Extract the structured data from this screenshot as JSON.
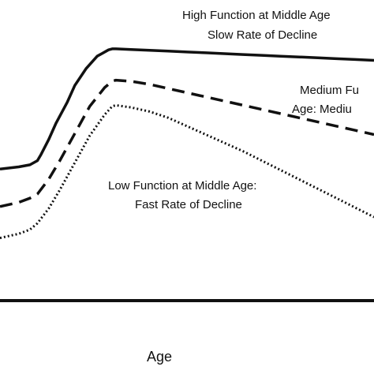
{
  "chart_data": {
    "type": "line",
    "title": "",
    "xlabel": "Age",
    "ylabel": "",
    "grid": false,
    "legend": "none",
    "series": [
      {
        "x": [
          0,
          0.5,
          0.8,
          1.0,
          1.1,
          1.3,
          1.5,
          1.8,
          2.0,
          2.3,
          2.6,
          2.9,
          3.0,
          3.1,
          3.5,
          4.0,
          4.5,
          5.0,
          5.5,
          6.0,
          6.5,
          7.0,
          7.5,
          8.0,
          8.5,
          9.0,
          9.5,
          10.0
        ],
        "values": [
          38,
          39,
          40,
          42,
          45,
          52,
          60,
          70,
          78,
          86,
          92,
          95,
          95.5,
          95.5,
          95.2,
          94.8,
          94.4,
          94.0,
          93.6,
          93.2,
          92.8,
          92.4,
          92.0,
          91.6,
          91.2,
          90.8,
          90.4,
          90.0
        ],
        "style": "solid"
      },
      {
        "x": [
          0,
          0.5,
          0.8,
          1.0,
          1.3,
          1.6,
          2.0,
          2.4,
          2.8,
          3.0,
          3.1,
          3.5,
          4.0,
          4.5,
          5.0,
          5.5,
          6.0,
          6.5,
          7.0,
          7.5,
          8.0,
          8.5,
          9.0,
          9.5,
          10.0
        ],
        "values": [
          20,
          22,
          24,
          26,
          33,
          42,
          55,
          68,
          77,
          80,
          80.5,
          80,
          78.5,
          76.5,
          74.5,
          72.5,
          70.5,
          68.5,
          66.5,
          64.5,
          62.5,
          60.5,
          58.5,
          56.5,
          54.5
        ],
        "style": "dashed"
      },
      {
        "x": [
          0,
          0.5,
          0.8,
          1.0,
          1.3,
          1.6,
          2.0,
          2.4,
          2.8,
          3.0,
          3.1,
          3.5,
          4.0,
          4.5,
          5.0,
          5.5,
          6.0,
          6.5,
          7.0,
          7.5,
          8.0,
          8.5,
          9.0,
          9.5,
          10.0
        ],
        "values": [
          5,
          7,
          9,
          12,
          19,
          28,
          41,
          54,
          64,
          68,
          68.5,
          67.5,
          65.5,
          62.5,
          58.5,
          54.5,
          50.5,
          46.5,
          42.0,
          37.5,
          33.0,
          28.5,
          24.0,
          19.5,
          15.0
        ],
        "style": "dotted"
      }
    ],
    "annotations": [
      "High Function at Middle Age",
      "Slow Rate of Decline",
      "Medium Fu",
      "Age: Mediu",
      "Low Function at Middle Age:",
      "Fast Rate of Decline"
    ],
    "xlim": [
      0,
      10
    ],
    "ylim": [
      -25,
      100
    ]
  }
}
